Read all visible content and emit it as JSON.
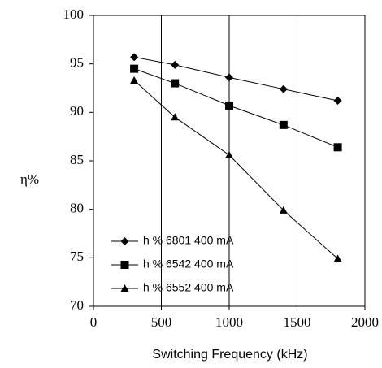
{
  "chart_data": {
    "type": "line",
    "title": "",
    "xlabel": "Switching Frequency (kHz)",
    "ylabel": "η%",
    "xlim": [
      0,
      2000
    ],
    "ylim": [
      70,
      100
    ],
    "x_ticks": [
      "0",
      "500",
      "1000",
      "1500",
      "2000"
    ],
    "y_ticks": [
      "70",
      "75",
      "80",
      "85",
      "90",
      "95",
      "100"
    ],
    "grid": "vertical",
    "legend_position": "bottom-left",
    "series": [
      {
        "name": "h % 6801 400 mA",
        "marker": "diamond",
        "x": [
          300,
          600,
          1000,
          1400,
          1800
        ],
        "y": [
          95.7,
          94.9,
          93.6,
          92.4,
          91.2
        ]
      },
      {
        "name": "h % 6542 400 mA",
        "marker": "square",
        "x": [
          300,
          600,
          1000,
          1400,
          1800
        ],
        "y": [
          94.5,
          93.0,
          90.7,
          88.7,
          86.4
        ]
      },
      {
        "name": "h % 6552 400 mA",
        "marker": "triangle",
        "x": [
          300,
          600,
          1000,
          1400,
          1800
        ],
        "y": [
          93.3,
          89.5,
          85.6,
          79.9,
          74.9
        ]
      }
    ]
  }
}
